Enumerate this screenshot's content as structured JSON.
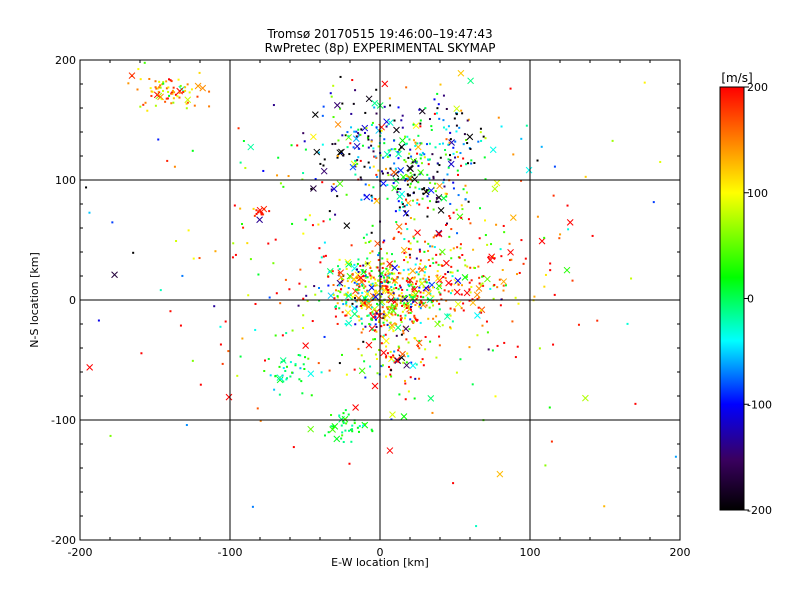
{
  "chart_data": {
    "type": "scatter",
    "title": "Tromsø 20170515 19:46:00–19:47:43",
    "subtitle": "RwPretec (8p) EXPERIMENTAL SKYMAP",
    "xlabel": "E-W location [km]",
    "ylabel": "N-S location [km]",
    "xlim": [
      -200,
      200
    ],
    "ylim": [
      -200,
      200
    ],
    "xticks": [
      "-200",
      "-100",
      "0",
      "100",
      "200"
    ],
    "yticks": [
      "-200",
      "-100",
      "0",
      "100",
      "200"
    ],
    "grid": true,
    "colorbar": {
      "label": "[m/s]",
      "range": [
        -200,
        200
      ],
      "ticks": [
        "-200",
        "-100",
        "0",
        "100",
        "200"
      ],
      "colors": [
        "#000000",
        "#3a0060",
        "#0000ff",
        "#00ffff",
        "#00ff00",
        "#ffff00",
        "#ff0000"
      ]
    },
    "clusters": [
      {
        "cx": 2,
        "cy": 5,
        "sx": 20,
        "sy": 18,
        "n": 520,
        "vmean": 60,
        "vspread": 110
      },
      {
        "cx": 25,
        "cy": 100,
        "sx": 22,
        "sy": 22,
        "n": 230,
        "vmean": -60,
        "vspread": 120
      },
      {
        "cx": -15,
        "cy": 130,
        "sx": 20,
        "sy": 20,
        "n": 110,
        "vmean": -100,
        "vspread": 110
      },
      {
        "cx": 45,
        "cy": 140,
        "sx": 25,
        "sy": 18,
        "n": 70,
        "vmean": -80,
        "vspread": 120
      },
      {
        "cx": -140,
        "cy": 175,
        "sx": 15,
        "sy": 8,
        "n": 80,
        "vmean": 150,
        "vspread": 50
      },
      {
        "cx": -80,
        "cy": 73,
        "sx": 4,
        "sy": 2,
        "n": 15,
        "vmean": 190,
        "vspread": 10
      },
      {
        "cx": -60,
        "cy": -60,
        "sx": 8,
        "sy": 8,
        "n": 40,
        "vmean": -10,
        "vspread": 25
      },
      {
        "cx": -25,
        "cy": -105,
        "sx": 8,
        "sy": 7,
        "n": 40,
        "vmean": 10,
        "vspread": 20
      },
      {
        "cx": 10,
        "cy": -45,
        "sx": 12,
        "sy": 15,
        "n": 70,
        "vmean": 80,
        "vspread": 150
      },
      {
        "cx": 50,
        "cy": 20,
        "sx": 30,
        "sy": 25,
        "n": 160,
        "vmean": 140,
        "vspread": 80
      },
      {
        "cx": 0,
        "cy": 40,
        "sx": 60,
        "sy": 60,
        "n": 200,
        "vmean": 130,
        "vspread": 120
      },
      {
        "cx": 0,
        "cy": 20,
        "sx": 130,
        "sy": 100,
        "n": 140,
        "vmean": 80,
        "vspread": 150
      }
    ]
  }
}
